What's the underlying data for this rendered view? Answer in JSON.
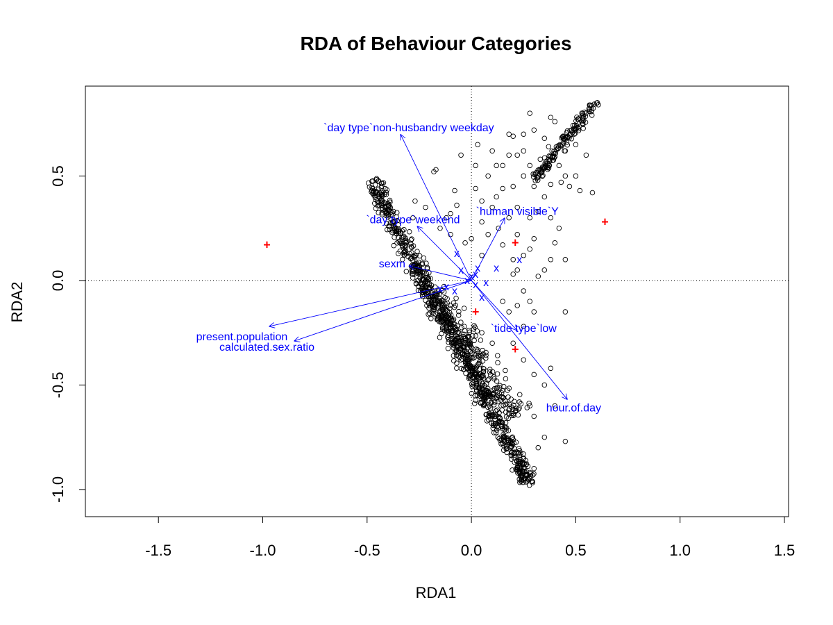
{
  "chart_data": {
    "type": "scatter",
    "title": "RDA of Behaviour Categories",
    "xlabel": "RDA1",
    "ylabel": "RDA2",
    "xlim": [
      -1.85,
      1.52
    ],
    "ylim": [
      -1.13,
      0.93
    ],
    "x_ticks": [
      -1.5,
      -1.0,
      -0.5,
      0.0,
      0.5,
      1.0,
      1.5
    ],
    "x_tick_labels": [
      "-1.5",
      "-1.0",
      "-0.5",
      "0.0",
      "0.5",
      "1.0",
      "1.5"
    ],
    "y_ticks": [
      -1.0,
      -0.5,
      0.0,
      0.5
    ],
    "y_tick_labels": [
      "-1.0",
      "-0.5",
      "0.0",
      "0.5"
    ],
    "reference_lines": {
      "x": 0,
      "y": 0,
      "style": "dotted"
    },
    "colors": {
      "sites": "#000000",
      "biplot": "#0000ff",
      "species": "#0000ff",
      "centroids": "#ff0000"
    },
    "point_groups": [
      {
        "x0": -0.48,
        "y0": 0.48,
        "x1": 0.28,
        "y1": -0.98,
        "n": 760,
        "spread": 0.035
      },
      {
        "x0": -0.2,
        "y0": -0.05,
        "x1": 0.22,
        "y1": -0.65,
        "n": 260,
        "spread": 0.06
      },
      {
        "x0": 0.3,
        "y0": 0.48,
        "x1": 0.6,
        "y1": 0.86,
        "n": 140,
        "spread": 0.018
      }
    ],
    "scattered_points": [
      [
        -0.05,
        0.6
      ],
      [
        -0.18,
        0.52
      ],
      [
        -0.17,
        0.53
      ],
      [
        0.03,
        0.65
      ],
      [
        0.02,
        0.55
      ],
      [
        0.08,
        0.5
      ],
      [
        0.1,
        0.62
      ],
      [
        0.18,
        0.7
      ],
      [
        0.2,
        0.69
      ],
      [
        0.22,
        0.6
      ],
      [
        0.25,
        0.7
      ],
      [
        0.28,
        0.55
      ],
      [
        0.3,
        0.72
      ],
      [
        0.35,
        0.68
      ],
      [
        0.37,
        0.64
      ],
      [
        0.33,
        0.58
      ],
      [
        0.42,
        0.55
      ],
      [
        0.45,
        0.5
      ],
      [
        0.47,
        0.45
      ],
      [
        0.52,
        0.43
      ],
      [
        0.58,
        0.42
      ],
      [
        0.55,
        0.6
      ],
      [
        0.5,
        0.65
      ],
      [
        0.48,
        0.72
      ],
      [
        0.4,
        0.76
      ],
      [
        0.28,
        0.8
      ],
      [
        0.38,
        0.78
      ],
      [
        0.12,
        0.4
      ],
      [
        0.15,
        0.44
      ],
      [
        0.2,
        0.45
      ],
      [
        0.25,
        0.5
      ],
      [
        0.3,
        0.45
      ],
      [
        0.35,
        0.4
      ],
      [
        0.38,
        0.46
      ],
      [
        0.43,
        0.47
      ],
      [
        -0.08,
        0.43
      ],
      [
        -0.07,
        0.36
      ],
      [
        0.02,
        0.44
      ],
      [
        0.05,
        0.38
      ],
      [
        0.1,
        0.35
      ],
      [
        0.18,
        0.3
      ],
      [
        0.22,
        0.35
      ],
      [
        0.28,
        0.3
      ],
      [
        0.32,
        0.33
      ],
      [
        0.38,
        0.3
      ],
      [
        0.4,
        0.18
      ],
      [
        0.42,
        0.25
      ],
      [
        0.3,
        0.2
      ],
      [
        0.28,
        0.15
      ],
      [
        0.25,
        0.12
      ],
      [
        0.22,
        0.22
      ],
      [
        0.2,
        0.1
      ],
      [
        0.15,
        0.17
      ],
      [
        0.13,
        0.25
      ],
      [
        0.38,
        0.1
      ],
      [
        0.45,
        0.1
      ],
      [
        0.35,
        0.05
      ],
      [
        0.32,
        0.02
      ],
      [
        0.2,
        0.03
      ],
      [
        0.25,
        -0.05
      ],
      [
        0.28,
        -0.1
      ],
      [
        0.3,
        -0.15
      ],
      [
        0.25,
        -0.22
      ],
      [
        0.22,
        -0.12
      ],
      [
        0.18,
        -0.15
      ],
      [
        0.15,
        -0.1
      ],
      [
        0.2,
        -0.3
      ],
      [
        0.25,
        -0.38
      ],
      [
        0.3,
        -0.45
      ],
      [
        0.35,
        -0.5
      ],
      [
        0.28,
        -0.6
      ],
      [
        0.3,
        -0.65
      ],
      [
        0.35,
        -0.75
      ],
      [
        0.32,
        -0.8
      ],
      [
        0.25,
        -0.85
      ],
      [
        0.3,
        -0.9
      ],
      [
        0.45,
        -0.77
      ],
      [
        0.4,
        -0.6
      ],
      [
        0.45,
        -0.15
      ],
      [
        0.38,
        -0.42
      ],
      [
        -0.1,
        0.32
      ],
      [
        -0.12,
        0.3
      ],
      [
        -0.15,
        0.25
      ],
      [
        -0.1,
        0.22
      ],
      [
        0.0,
        0.2
      ],
      [
        0.05,
        0.28
      ],
      [
        0.08,
        0.22
      ],
      [
        0.05,
        0.12
      ],
      [
        -0.03,
        0.18
      ],
      [
        0.15,
        0.55
      ],
      [
        0.25,
        0.62
      ],
      [
        0.32,
        0.5
      ],
      [
        0.45,
        0.62
      ],
      [
        0.5,
        0.5
      ],
      [
        0.18,
        0.6
      ],
      [
        0.12,
        0.55
      ],
      [
        -0.22,
        0.35
      ],
      [
        -0.28,
        0.3
      ],
      [
        -0.27,
        0.38
      ],
      [
        0.22,
        0.05
      ],
      [
        0.05,
        -0.25
      ],
      [
        0.1,
        -0.3
      ]
    ],
    "biplot_arrows": [
      {
        "label": "`day type`non-husbandry weekday",
        "x": -0.34,
        "y": 0.7,
        "lx": -0.3,
        "ly": 0.73
      },
      {
        "label": "`day type`weekend",
        "x": -0.26,
        "y": 0.26,
        "lx": -0.28,
        "ly": 0.29
      },
      {
        "label": "`human visible`Y",
        "x": 0.16,
        "y": 0.3,
        "lx": 0.22,
        "ly": 0.33
      },
      {
        "label": "sexm",
        "x": -0.3,
        "y": 0.07,
        "lx": -0.38,
        "ly": 0.08
      },
      {
        "label": "present.population",
        "x": -0.97,
        "y": -0.22,
        "lx": -1.1,
        "ly": -0.27
      },
      {
        "label": "calculated.sex.ratio",
        "x": -0.85,
        "y": -0.29,
        "lx": -0.98,
        "ly": -0.32
      },
      {
        "label": "`tide type`low",
        "x": 0.22,
        "y": -0.24,
        "lx": 0.25,
        "ly": -0.23
      },
      {
        "label": "hour.of.day",
        "x": 0.46,
        "y": -0.57,
        "lx": 0.49,
        "ly": -0.61
      }
    ],
    "species_scores": [
      [
        -0.07,
        0.13
      ],
      [
        -0.05,
        0.05
      ],
      [
        0.03,
        0.06
      ],
      [
        0.12,
        0.06
      ],
      [
        0.23,
        0.1
      ],
      [
        0.02,
        0.03
      ],
      [
        -0.02,
        0.0
      ],
      [
        0.02,
        -0.02
      ],
      [
        0.07,
        -0.01
      ],
      [
        -0.08,
        -0.05
      ],
      [
        0.05,
        -0.08
      ],
      [
        -0.15,
        -0.04
      ],
      [
        -0.12,
        -0.03
      ],
      [
        0.0,
        0.02
      ]
    ],
    "centroids": [
      [
        -0.98,
        0.17
      ],
      [
        0.64,
        0.28
      ],
      [
        0.21,
        0.18
      ],
      [
        0.02,
        -0.15
      ],
      [
        0.21,
        -0.33
      ]
    ]
  }
}
